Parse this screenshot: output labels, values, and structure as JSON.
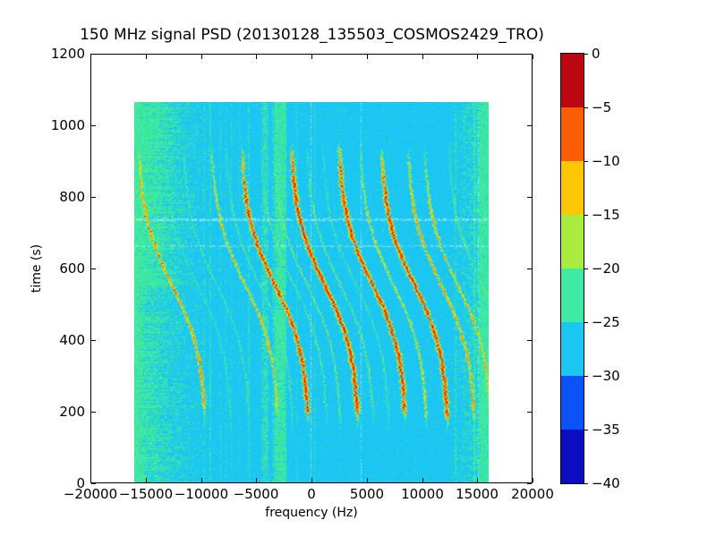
{
  "figure": {
    "background": "#ffffff"
  },
  "chart_data": {
    "type": "heatmap",
    "title": "150 MHz signal PSD (20130128_135503_COSMOS2429_TRO)",
    "xlabel": "frequency (Hz)",
    "ylabel": "time (s)",
    "xlim": [
      -20000,
      20000
    ],
    "ylim": [
      0,
      1200
    ],
    "grid": false,
    "x_ticks": [
      -20000,
      -15000,
      -10000,
      -5000,
      0,
      5000,
      10000,
      15000,
      20000
    ],
    "x_tick_labels": [
      "−20000",
      "−15000",
      "−10000",
      "−5000",
      "0",
      "5000",
      "10000",
      "15000",
      "20000"
    ],
    "y_ticks": [
      0,
      200,
      400,
      600,
      800,
      1000,
      1200
    ],
    "y_tick_labels": [
      "0",
      "200",
      "400",
      "600",
      "800",
      "1000",
      "1200"
    ],
    "colorbar": {
      "tick_values": [
        0,
        -5,
        -10,
        -15,
        -20,
        -25,
        -30,
        -35,
        -40
      ],
      "tick_labels": [
        "0",
        "−5",
        "−10",
        "−15",
        "−20",
        "−25",
        "−30",
        "−35",
        "−40"
      ],
      "segment_colors_top_to_bottom": [
        "#bb0712",
        "#fb5d03",
        "#fdc706",
        "#a9ec3e",
        "#3fe9a6",
        "#1cc6f2",
        "#0b52f7",
        "#0a0ec0"
      ],
      "position": "right"
    },
    "heatmap": {
      "freq_extent_hz": [
        -16000,
        16000
      ],
      "time_extent_s": [
        0,
        1065
      ],
      "background_color": "#1cc6f2",
      "background_light": "#34cef4",
      "noise_green": "#3fe9a6",
      "noise_green_dark": "#2bdd92",
      "curve_palette_low_to_high": [
        "#3fe9a6",
        "#a9ec3e",
        "#fdc706",
        "#fb5d03",
        "#cc0e06"
      ],
      "doppler_model": {
        "amplitude_hz": 3100,
        "inflection_time_s": 555,
        "tau_s": 200,
        "visible_time_range_s": [
          140,
          960
        ]
      },
      "doppler_curves": [
        {
          "center_hz": -12600,
          "strength": 0.62
        },
        {
          "center_hz": -10300,
          "strength": 0.2
        },
        {
          "center_hz": -8600,
          "strength": 0.26
        },
        {
          "center_hz": -6000,
          "strength": 0.5
        },
        {
          "center_hz": -4700,
          "strength": 0.26
        },
        {
          "center_hz": -3300,
          "strength": 0.85
        },
        {
          "center_hz": -1600,
          "strength": 0.28
        },
        {
          "center_hz": -400,
          "strength": 0.33
        },
        {
          "center_hz": 1200,
          "strength": 0.95
        },
        {
          "center_hz": 2600,
          "strength": 0.33
        },
        {
          "center_hz": 4000,
          "strength": 0.25
        },
        {
          "center_hz": 5500,
          "strength": 0.92
        },
        {
          "center_hz": 7400,
          "strength": 0.45
        },
        {
          "center_hz": 9300,
          "strength": 0.85
        },
        {
          "center_hz": 11700,
          "strength": 0.58
        },
        {
          "center_hz": 13200,
          "strength": 0.5
        },
        {
          "center_hz": 15400,
          "strength": 0.3
        }
      ],
      "interference_stripes": [
        {
          "f": -15800,
          "hw": 200,
          "p": 0.8
        },
        {
          "f": -15350,
          "hw": 80,
          "p": 0.4
        },
        {
          "f": -9700,
          "hw": 45,
          "p": 0.35
        },
        {
          "f": -9150,
          "hw": 60,
          "p": 0.5
        },
        {
          "f": -8200,
          "hw": 70,
          "p": 0.5
        },
        {
          "f": -7700,
          "hw": 45,
          "p": 0.45
        },
        {
          "f": -7200,
          "hw": 40,
          "p": 0.4
        },
        {
          "f": -6500,
          "hw": 35,
          "p": 0.25
        },
        {
          "f": -5650,
          "hw": 55,
          "p": 0.45
        },
        {
          "f": -4200,
          "hw": 350,
          "p": 0.45
        },
        {
          "f": -2800,
          "hw": 500,
          "p": 0.7
        },
        {
          "f": -3400,
          "hw": 150,
          "p": 0.35
        },
        {
          "f": -1350,
          "hw": 45,
          "p": 0.5
        },
        {
          "f": 270,
          "hw": 40,
          "p": 0.55
        },
        {
          "f": 2550,
          "hw": 35,
          "p": 0.18
        },
        {
          "f": 6500,
          "hw": 30,
          "p": 0.12
        },
        {
          "f": 13000,
          "hw": 55,
          "p": 0.45
        },
        {
          "f": 13800,
          "hw": 40,
          "p": 0.3
        },
        {
          "f": 14700,
          "hw": 70,
          "p": 0.55
        },
        {
          "f": 15400,
          "hw": 300,
          "p": 0.6
        },
        {
          "f": 15850,
          "hw": 150,
          "p": 0.75
        }
      ],
      "noise_bands": {
        "left_band_edge_hz": -8800,
        "left_band_span_hz": 7200,
        "left_band_density": 0.85,
        "right_band_edge_hz": 12300,
        "right_band_span_hz": 3700,
        "right_band_density": 0.5
      },
      "dropout_rows_t_s": [
        737,
        662
      ],
      "light_columns_hz": [
        -30,
        4450,
        15100
      ]
    }
  }
}
